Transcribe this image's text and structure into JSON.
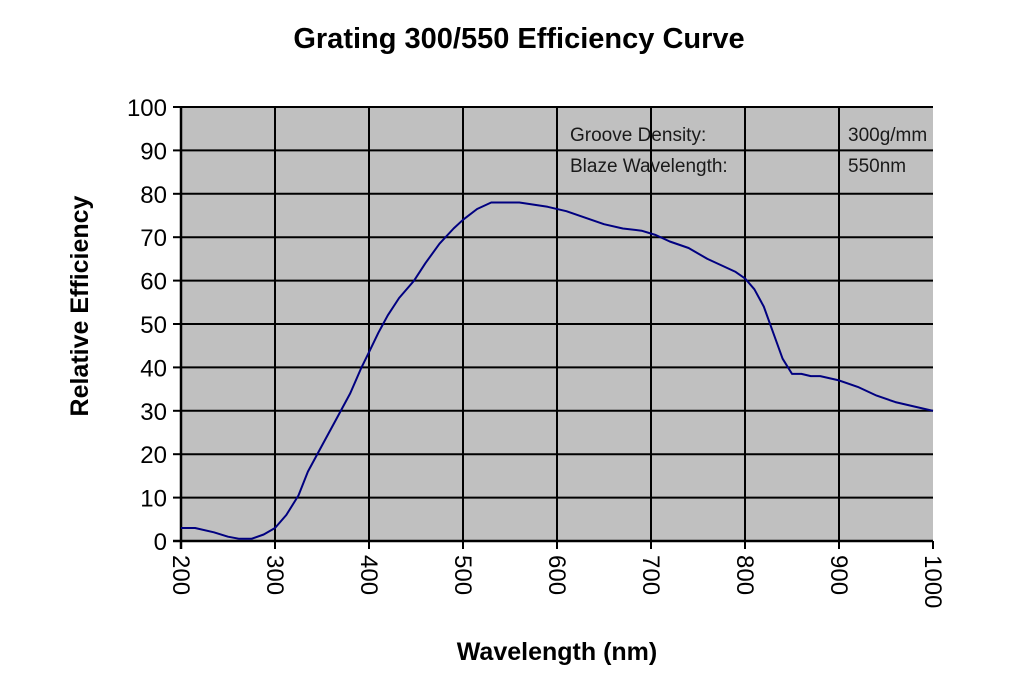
{
  "chart_data": {
    "type": "line",
    "title": "Grating 300/550 Efficiency Curve",
    "xlabel": "Wavelength (nm)",
    "ylabel": "Relative Efficiency",
    "xlim": [
      200,
      1000
    ],
    "ylim": [
      0,
      100
    ],
    "x_ticks": [
      200,
      300,
      400,
      500,
      600,
      700,
      800,
      900,
      1000
    ],
    "y_ticks": [
      0,
      10,
      20,
      30,
      40,
      50,
      60,
      70,
      80,
      90,
      100
    ],
    "x_tick_labels": [
      "200",
      "300",
      "400",
      "500",
      "600",
      "700",
      "800",
      "900",
      "1000"
    ],
    "y_tick_labels": [
      "0",
      "10",
      "20",
      "30",
      "40",
      "50",
      "60",
      "70",
      "80",
      "90",
      "100"
    ],
    "grid": true,
    "legend": "none",
    "colors": {
      "plot_background": "#c0c0c0",
      "line": "#000080",
      "grid": "#000000"
    },
    "annotations": [
      {
        "label": "Groove Density:",
        "value": "300g/mm"
      },
      {
        "label": "Blaze Wavelength:",
        "value": "550nm"
      }
    ],
    "series": [
      {
        "name": "Relative Efficiency",
        "x": [
          200,
          215,
          235,
          250,
          262,
          275,
          288,
          300,
          312,
          325,
          335,
          350,
          365,
          380,
          392,
          400,
          410,
          420,
          432,
          448,
          460,
          475,
          490,
          500,
          515,
          530,
          545,
          560,
          575,
          590,
          610,
          630,
          650,
          670,
          690,
          705,
          720,
          740,
          760,
          775,
          790,
          800,
          810,
          820,
          830,
          840,
          850,
          860,
          870,
          880,
          900,
          920,
          940,
          960,
          980,
          1000
        ],
        "y": [
          3,
          3,
          2,
          1,
          0.5,
          0.5,
          1.5,
          3,
          6,
          10.5,
          16,
          22,
          28,
          34,
          40,
          43.5,
          48,
          52,
          56,
          60,
          64,
          68.5,
          72,
          74,
          76.5,
          78,
          78,
          78,
          77.5,
          77,
          76,
          74.5,
          73,
          72,
          71.5,
          70.5,
          69,
          67.5,
          65,
          63.5,
          62,
          60.5,
          58,
          54,
          48,
          42,
          38.5,
          38.5,
          38,
          38,
          37,
          35.5,
          33.5,
          32,
          31,
          30
        ]
      }
    ]
  }
}
